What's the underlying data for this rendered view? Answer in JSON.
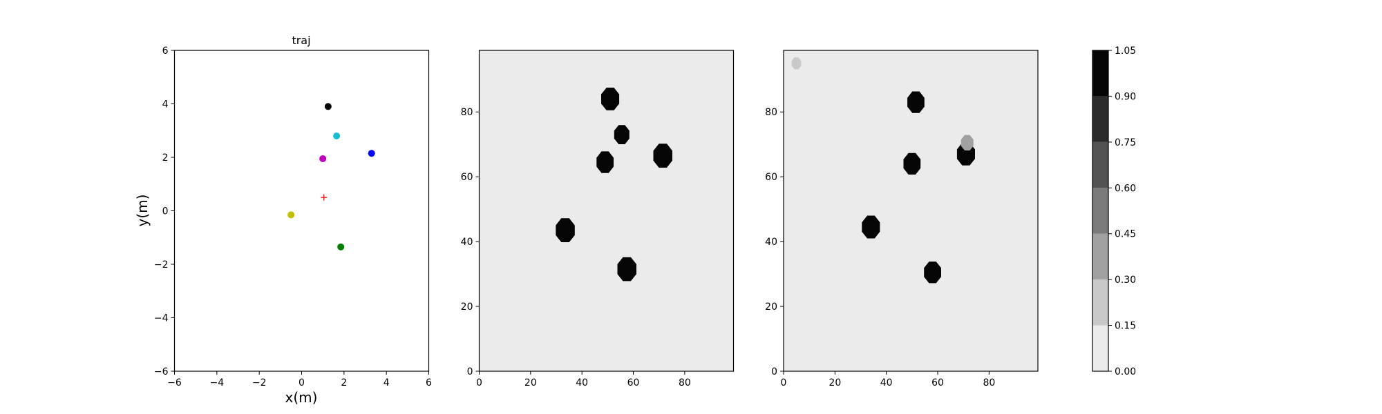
{
  "chart_data": [
    {
      "type": "scatter",
      "title": "traj",
      "xlabel": "x(m)",
      "ylabel": "y(m)",
      "xlim": [
        -6,
        6
      ],
      "ylim": [
        -6,
        6
      ],
      "xticks": [
        -6,
        -4,
        -2,
        0,
        2,
        4,
        6
      ],
      "yticks": [
        -6,
        -4,
        -2,
        0,
        2,
        4,
        6
      ],
      "grid": false,
      "points": [
        {
          "x": 1.25,
          "y": 3.9,
          "color": "#000000",
          "marker": "circle"
        },
        {
          "x": 1.65,
          "y": 2.8,
          "color": "#17becf",
          "marker": "circle"
        },
        {
          "x": 3.3,
          "y": 2.15,
          "color": "#0000ff",
          "marker": "circle"
        },
        {
          "x": 1.0,
          "y": 1.95,
          "color": "#bf00bf",
          "marker": "circle"
        },
        {
          "x": 1.05,
          "y": 0.5,
          "color": "#ff0000",
          "marker": "plus"
        },
        {
          "x": -0.5,
          "y": -0.15,
          "color": "#bfbf00",
          "marker": "circle"
        },
        {
          "x": 1.85,
          "y": -1.35,
          "color": "#008000",
          "marker": "circle"
        }
      ]
    },
    {
      "type": "heatmap",
      "xlim": [
        0,
        99
      ],
      "ylim": [
        0,
        99
      ],
      "xticks": [
        0,
        20,
        40,
        60,
        80
      ],
      "yticks": [
        0,
        20,
        40,
        60,
        80
      ],
      "background_value": 0.05,
      "blobs": [
        {
          "x": 51,
          "y": 84,
          "r": 3.8,
          "value": 1.0
        },
        {
          "x": 55.5,
          "y": 73,
          "r": 3.2,
          "value": 1.0
        },
        {
          "x": 71.5,
          "y": 66.5,
          "r": 4.0,
          "value": 1.0
        },
        {
          "x": 49,
          "y": 64.5,
          "r": 3.6,
          "value": 1.0
        },
        {
          "x": 33.5,
          "y": 43.5,
          "r": 4.0,
          "value": 1.0
        },
        {
          "x": 57.5,
          "y": 31.5,
          "r": 4.0,
          "value": 1.0
        }
      ]
    },
    {
      "type": "heatmap",
      "xlim": [
        0,
        99
      ],
      "ylim": [
        0,
        99
      ],
      "xticks": [
        0,
        20,
        40,
        60,
        80
      ],
      "yticks": [
        0,
        20,
        40,
        60,
        80
      ],
      "background_value": 0.05,
      "blobs": [
        {
          "x": 5,
          "y": 95,
          "r": 2.0,
          "value": 0.2
        },
        {
          "x": 51.5,
          "y": 83,
          "r": 3.6,
          "value": 1.0
        },
        {
          "x": 71,
          "y": 67,
          "r": 3.8,
          "value": 1.0
        },
        {
          "x": 71.5,
          "y": 70.5,
          "r": 2.6,
          "value": 0.35
        },
        {
          "x": 50,
          "y": 64,
          "r": 3.6,
          "value": 1.0
        },
        {
          "x": 34,
          "y": 44.5,
          "r": 3.8,
          "value": 1.0
        },
        {
          "x": 58,
          "y": 30.5,
          "r": 3.6,
          "value": 1.0
        }
      ]
    }
  ],
  "colorbar": {
    "levels": [
      0.0,
      0.15,
      0.3,
      0.45,
      0.6,
      0.75,
      0.9,
      1.05
    ],
    "labels": [
      "0.00",
      "0.15",
      "0.30",
      "0.45",
      "0.60",
      "0.75",
      "0.90",
      "1.05"
    ],
    "colors": [
      "#ebebeb",
      "#c9c9c9",
      "#a1a1a1",
      "#7a7a7a",
      "#525252",
      "#2b2b2b",
      "#050505"
    ]
  }
}
